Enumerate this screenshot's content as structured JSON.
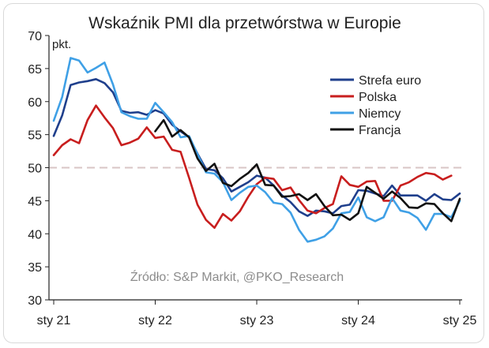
{
  "chart_data": {
    "type": "line",
    "title": "Wskaźnik PMI dla przetwórstwa w Europie",
    "unit_label": "pkt.",
    "source": "Źródło: S&P Markit, @PKO_Research",
    "ylim": [
      30,
      70
    ],
    "y_ticks": [
      "30",
      "35",
      "40",
      "45",
      "50",
      "55",
      "60",
      "65",
      "70"
    ],
    "x_start": "2021-01",
    "x_ticks": [
      "sty 21",
      "sty 22",
      "sty 23",
      "sty 24",
      "sty 25"
    ],
    "reference_line": 50,
    "legend_position": "top-right",
    "series": [
      {
        "name": "Strefa euro",
        "color": "#1f3f8c",
        "values": [
          54.8,
          57.9,
          62.5,
          62.9,
          63.1,
          63.4,
          62.8,
          61.4,
          58.6,
          58.3,
          58.4,
          58.0,
          58.7,
          58.2,
          56.5,
          55.5,
          54.6,
          52.1,
          49.8,
          49.6,
          48.4,
          46.4,
          47.1,
          47.8,
          48.8,
          48.5,
          47.3,
          45.8,
          44.8,
          43.4,
          42.7,
          43.5,
          43.4,
          43.1,
          44.2,
          44.4,
          46.6,
          46.5,
          46.1,
          45.7,
          47.3,
          45.8,
          45.8,
          45.8,
          45.0,
          46.0,
          45.2,
          45.1,
          46.1
        ]
      },
      {
        "name": "Polska",
        "color": "#c81e1e",
        "values": [
          51.9,
          53.4,
          54.3,
          53.7,
          57.2,
          59.4,
          57.6,
          56.0,
          53.4,
          53.8,
          54.4,
          56.1,
          54.5,
          54.7,
          52.7,
          52.4,
          48.5,
          44.4,
          42.1,
          40.9,
          43.0,
          42.0,
          43.4,
          45.6,
          47.5,
          48.5,
          48.3,
          46.6,
          47.0,
          45.1,
          43.5,
          43.1,
          43.9,
          44.5,
          48.7,
          47.4,
          47.1,
          47.9,
          48.0,
          45.0,
          45.0,
          47.3,
          47.8,
          48.6,
          49.2,
          49.0,
          48.2,
          48.8
        ]
      },
      {
        "name": "Niemcy",
        "color": "#3fa0e6",
        "values": [
          57.1,
          60.7,
          66.6,
          66.2,
          64.4,
          65.1,
          65.9,
          62.6,
          58.4,
          57.8,
          57.4,
          57.4,
          59.8,
          58.4,
          56.9,
          54.6,
          54.8,
          52.0,
          49.3,
          49.1,
          47.8,
          45.1,
          46.2,
          47.1,
          47.3,
          46.3,
          44.7,
          44.5,
          43.2,
          40.6,
          38.8,
          39.1,
          39.6,
          40.8,
          43.1,
          43.3,
          45.5,
          42.5,
          41.9,
          42.5,
          45.4,
          43.5,
          43.2,
          42.4,
          40.6,
          43.0,
          43.0,
          42.5,
          45.0
        ]
      },
      {
        "name": "Francja",
        "color": "#111111",
        "values": [
          null,
          null,
          null,
          null,
          null,
          null,
          null,
          null,
          null,
          null,
          null,
          null,
          55.5,
          57.2,
          54.7,
          55.7,
          54.6,
          51.4,
          49.5,
          50.6,
          47.7,
          47.2,
          48.3,
          49.2,
          50.5,
          47.4,
          47.3,
          45.6,
          45.7,
          46.0,
          45.1,
          46.0,
          44.2,
          42.8,
          42.9,
          42.1,
          43.1,
          47.1,
          46.2,
          45.3,
          46.4,
          45.4,
          44.0,
          43.9,
          44.6,
          44.5,
          43.1,
          41.9,
          45.3
        ]
      }
    ]
  }
}
